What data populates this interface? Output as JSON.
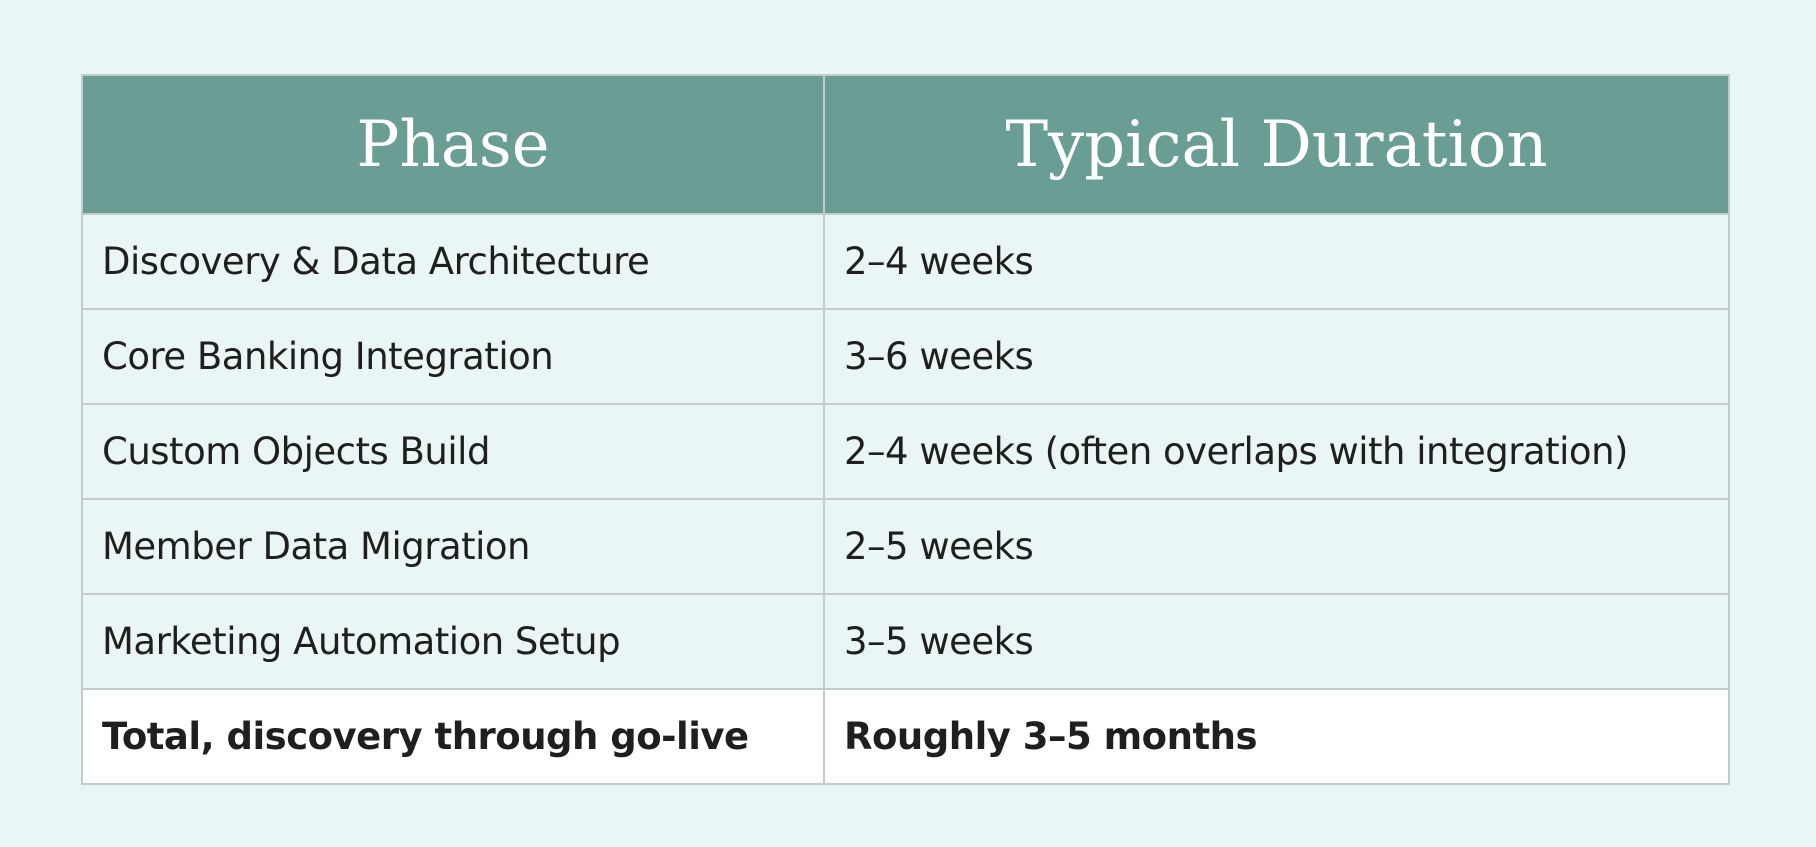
{
  "table": {
    "columns": [
      "Phase",
      "Typical Duration"
    ],
    "rows": [
      [
        "Discovery & Data Architecture",
        "2–4 weeks"
      ],
      [
        "Core Banking Integration",
        "3–6 weeks"
      ],
      [
        "Custom Objects Build",
        "2–4 weeks (often overlaps with integration)"
      ],
      [
        "Member Data Migration",
        "2–5 weeks"
      ],
      [
        "Marketing Automation Setup",
        "3–5 weeks"
      ]
    ],
    "total": [
      "Total, discovery through go-live",
      "Roughly 3–5 months"
    ]
  }
}
